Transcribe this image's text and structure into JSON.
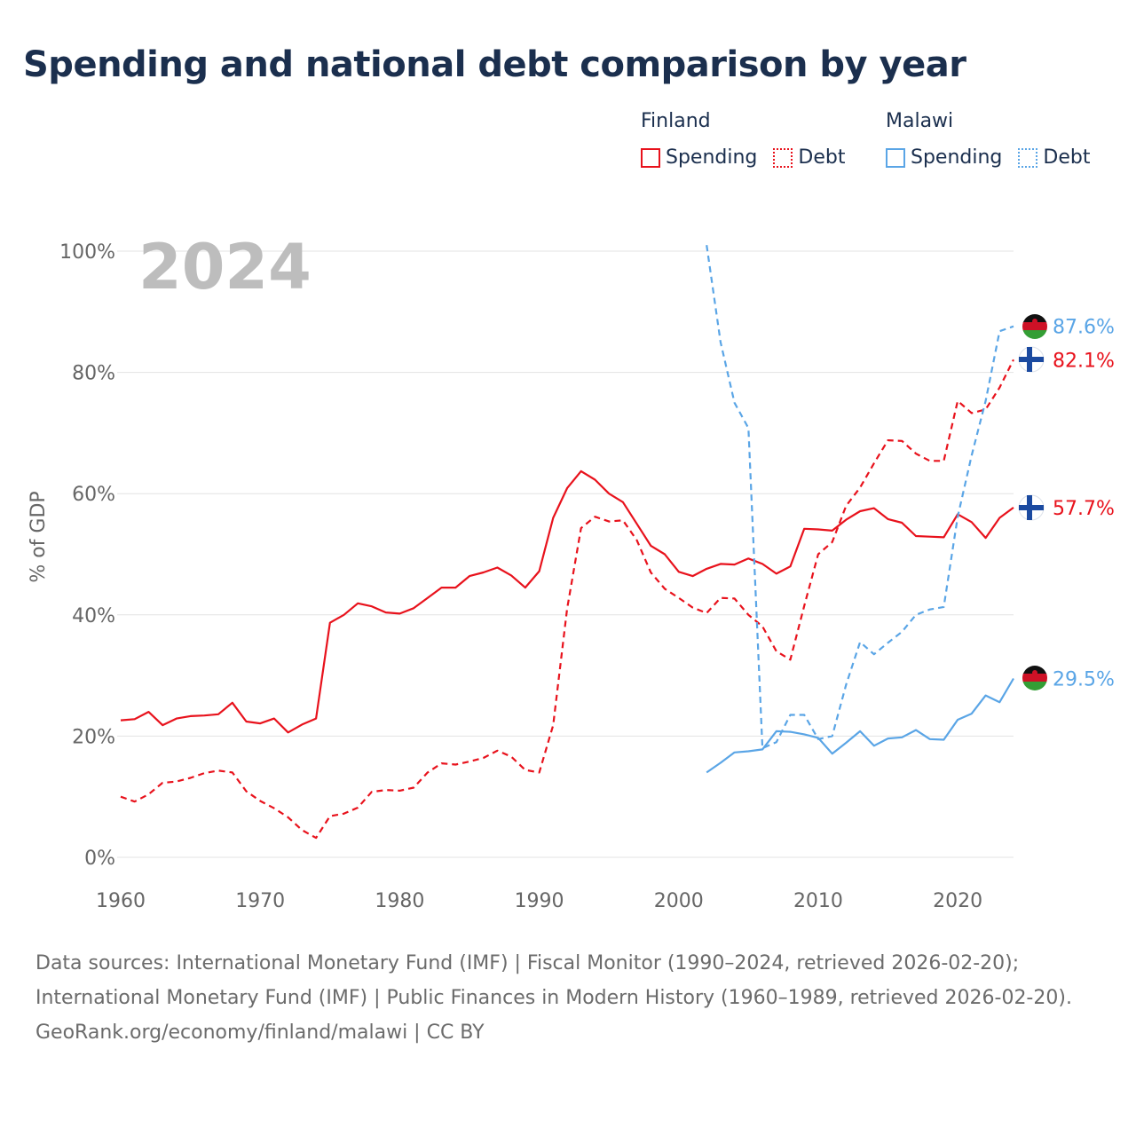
{
  "title": "Spending and national debt comparison by year",
  "legend": {
    "groups": [
      {
        "country": "Finland",
        "color": "#e8121c",
        "items": [
          "Spending",
          "Debt"
        ]
      },
      {
        "country": "Malawi",
        "color": "#5aa5e6",
        "items": [
          "Spending",
          "Debt"
        ]
      }
    ]
  },
  "year_overlay": "2024",
  "chart_data": {
    "type": "line",
    "title": "Spending and national debt comparison by year",
    "xlabel": "",
    "ylabel": "% of GDP",
    "xlim": [
      1960,
      2024
    ],
    "ylim": [
      0,
      100
    ],
    "xticks": [
      1960,
      1970,
      1980,
      1990,
      2000,
      2010,
      2020
    ],
    "yticks": [
      0,
      20,
      40,
      60,
      80,
      100
    ],
    "ytick_labels": [
      "0%",
      "20%",
      "40%",
      "60%",
      "80%",
      "100%"
    ],
    "grid": true,
    "series": [
      {
        "name": "Finland Spending",
        "country": "Finland",
        "measure": "Spending",
        "style": "solid",
        "color": "#e8121c",
        "x": [
          1960,
          1961,
          1962,
          1963,
          1964,
          1965,
          1966,
          1967,
          1968,
          1969,
          1970,
          1971,
          1972,
          1973,
          1974,
          1975,
          1976,
          1977,
          1978,
          1979,
          1980,
          1981,
          1982,
          1983,
          1984,
          1985,
          1986,
          1987,
          1988,
          1989,
          1990,
          1991,
          1992,
          1993,
          1994,
          1995,
          1996,
          1997,
          1998,
          1999,
          2000,
          2001,
          2002,
          2003,
          2004,
          2005,
          2006,
          2007,
          2008,
          2009,
          2010,
          2011,
          2012,
          2013,
          2014,
          2015,
          2016,
          2017,
          2018,
          2019,
          2020,
          2021,
          2022,
          2023,
          2024
        ],
        "y": [
          22.6,
          22.8,
          24.0,
          21.8,
          22.9,
          23.3,
          23.4,
          23.6,
          25.5,
          22.4,
          22.1,
          22.9,
          20.6,
          21.9,
          22.9,
          38.7,
          40.0,
          41.9,
          41.4,
          40.4,
          40.2,
          41.1,
          42.8,
          44.5,
          44.5,
          46.4,
          47.0,
          47.8,
          46.5,
          44.5,
          47.2,
          56.0,
          60.9,
          63.7,
          62.3,
          60.0,
          58.6,
          55.0,
          51.4,
          50.0,
          47.1,
          46.4,
          47.6,
          48.4,
          48.3,
          49.3,
          48.4,
          46.8,
          48.0,
          54.2,
          54.1,
          53.9,
          55.7,
          57.1,
          57.6,
          55.8,
          55.2,
          53.0,
          52.9,
          52.8,
          56.6,
          55.3,
          52.7,
          56.0,
          57.7
        ],
        "end_label": "57.7%"
      },
      {
        "name": "Finland Debt",
        "country": "Finland",
        "measure": "Debt",
        "style": "dashed",
        "color": "#e8121c",
        "x": [
          1960,
          1961,
          1962,
          1963,
          1964,
          1965,
          1966,
          1967,
          1968,
          1969,
          1970,
          1971,
          1972,
          1973,
          1974,
          1975,
          1976,
          1977,
          1978,
          1979,
          1980,
          1981,
          1982,
          1983,
          1984,
          1985,
          1986,
          1987,
          1988,
          1989,
          1990,
          1991,
          1992,
          1993,
          1994,
          1995,
          1996,
          1997,
          1998,
          1999,
          2000,
          2001,
          2002,
          2003,
          2004,
          2005,
          2006,
          2007,
          2008,
          2009,
          2010,
          2011,
          2012,
          2013,
          2014,
          2015,
          2016,
          2017,
          2018,
          2019,
          2020,
          2021,
          2022,
          2023,
          2024
        ],
        "y": [
          10.0,
          9.2,
          10.4,
          12.3,
          12.5,
          13.1,
          13.9,
          14.3,
          14.0,
          10.9,
          9.3,
          8.1,
          6.6,
          4.5,
          3.2,
          6.8,
          7.2,
          8.2,
          10.8,
          11.1,
          11.0,
          11.5,
          14.0,
          15.5,
          15.3,
          15.8,
          16.4,
          17.6,
          16.6,
          14.4,
          14.0,
          21.8,
          41.0,
          54.3,
          56.2,
          55.4,
          55.6,
          52.3,
          47.0,
          44.3,
          42.8,
          41.2,
          40.3,
          42.8,
          42.7,
          40.0,
          38.1,
          34.0,
          32.6,
          41.5,
          50.0,
          52.0,
          58.0,
          61.0,
          65.0,
          68.8,
          68.7,
          66.6,
          65.4,
          65.4,
          75.3,
          73.3,
          73.9,
          77.5,
          82.1
        ],
        "end_label": "82.1%"
      },
      {
        "name": "Malawi Spending",
        "country": "Malawi",
        "measure": "Spending",
        "style": "solid",
        "color": "#5aa5e6",
        "x": [
          2002,
          2003,
          2004,
          2005,
          2006,
          2007,
          2008,
          2009,
          2010,
          2011,
          2012,
          2013,
          2014,
          2015,
          2016,
          2017,
          2018,
          2019,
          2020,
          2021,
          2022,
          2023,
          2024
        ],
        "y": [
          14.0,
          15.6,
          17.3,
          17.5,
          17.8,
          20.8,
          20.7,
          20.3,
          19.7,
          17.1,
          18.9,
          20.8,
          18.4,
          19.6,
          19.8,
          21.0,
          19.5,
          19.4,
          22.7,
          23.7,
          26.7,
          25.6,
          29.5
        ],
        "end_label": "29.5%"
      },
      {
        "name": "Malawi Debt",
        "country": "Malawi",
        "measure": "Debt",
        "style": "dashed",
        "color": "#5aa5e6",
        "x": [
          2002,
          2003,
          2004,
          2005,
          2006,
          2007,
          2008,
          2009,
          2010,
          2011,
          2012,
          2013,
          2014,
          2015,
          2016,
          2017,
          2018,
          2019,
          2020,
          2021,
          2022,
          2023,
          2024
        ],
        "y": [
          101.0,
          85.0,
          75.0,
          70.8,
          18.0,
          19.0,
          23.5,
          23.5,
          19.5,
          20.0,
          28.5,
          35.5,
          33.5,
          35.4,
          37.2,
          40.0,
          40.9,
          41.3,
          56.2,
          66.3,
          75.3,
          86.8,
          87.6
        ],
        "end_label": "87.6%"
      }
    ]
  },
  "footer": {
    "sources": "Data sources: International Monetary Fund (IMF) | Fiscal Monitor (1990–2024, retrieved 2026-02-20); International Monetary Fund (IMF) | Public Finances in Modern History (1960–1989, retrieved 2026-02-20).",
    "credit": "GeoRank.org/economy/finland/malawi | CC BY"
  }
}
